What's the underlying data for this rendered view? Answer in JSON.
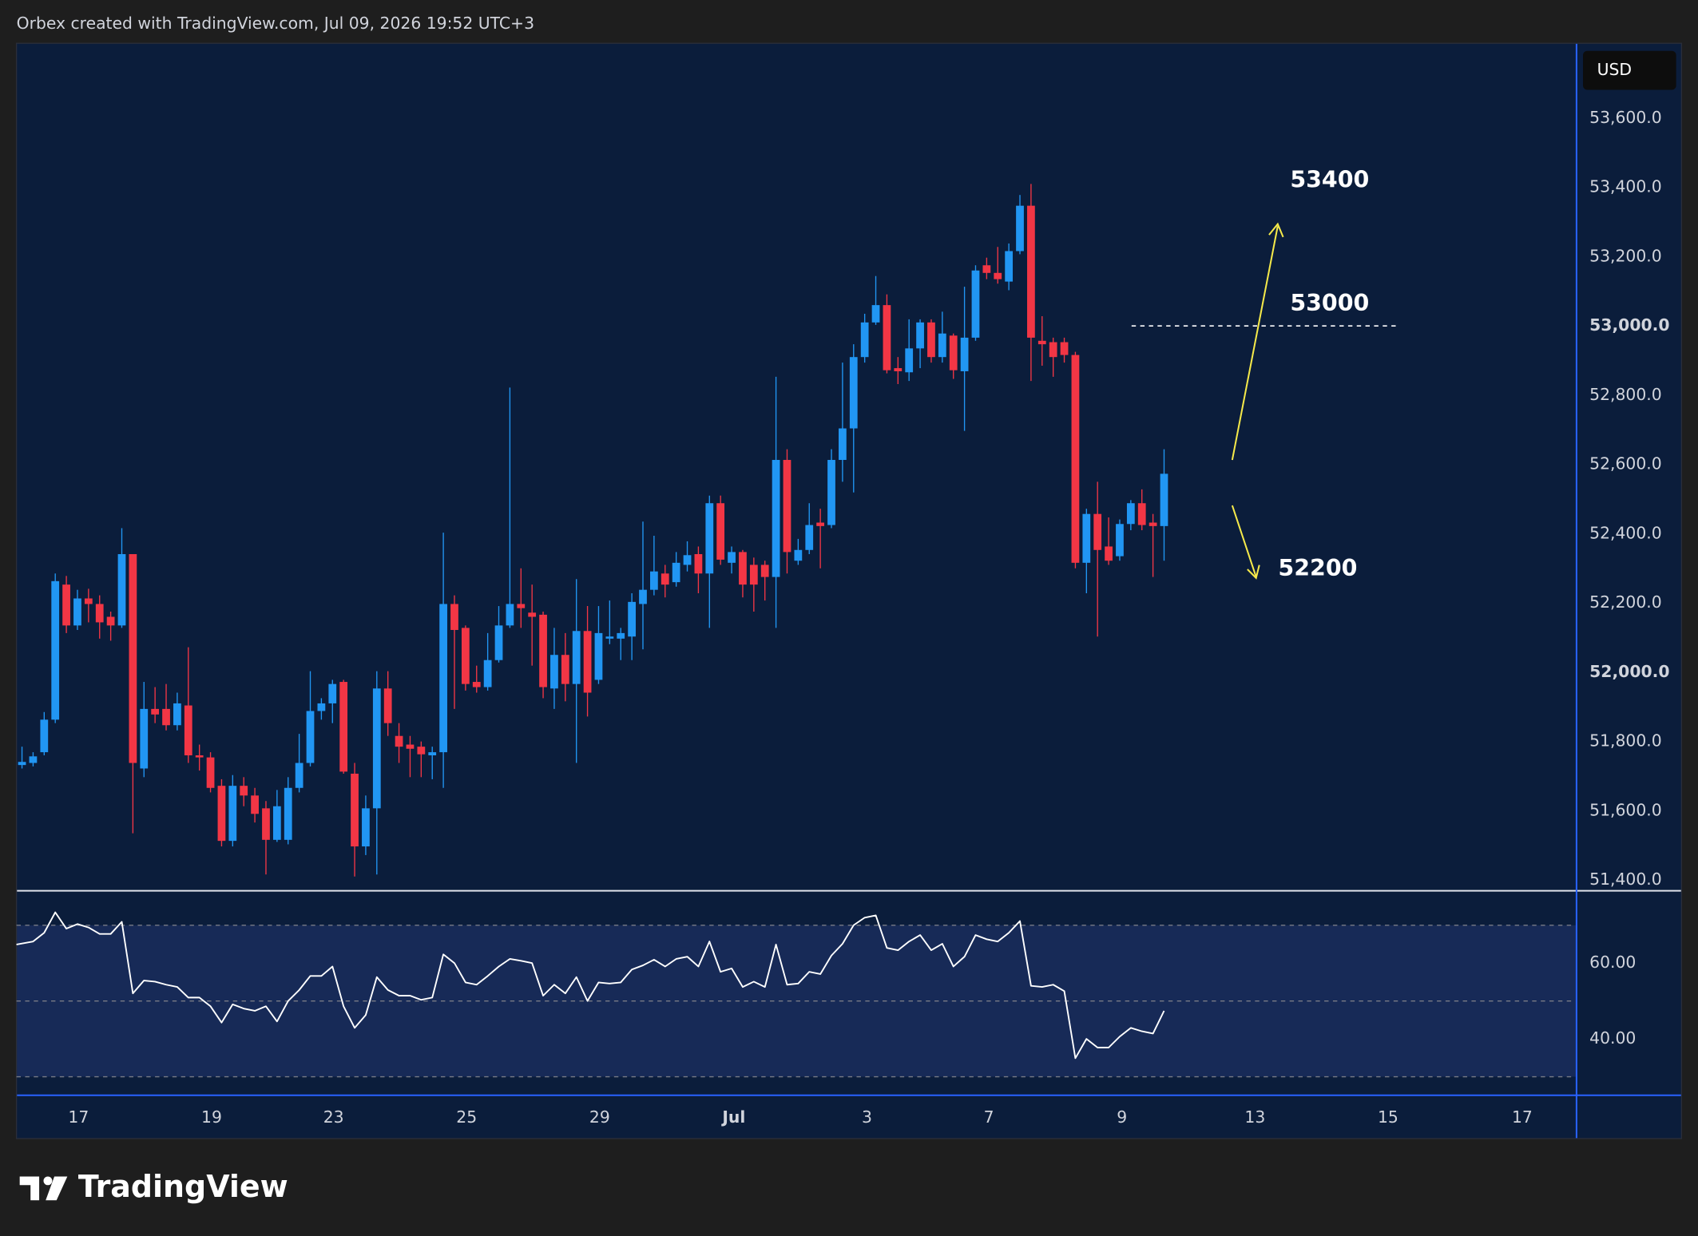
{
  "header": "Orbex created with TradingView.com, Jul 09, 2026 19:52 UTC+3",
  "logo": "TradingView",
  "chart_data": [
    {
      "type": "candlestick",
      "currency": "USD",
      "up_color": "#2196f3",
      "down_color": "#f23645",
      "open": [
        51732,
        51738,
        51769,
        51863,
        52253,
        52135,
        52213,
        52197,
        52160,
        52135,
        52341,
        51722,
        51894,
        51894,
        51847,
        51904,
        51760,
        51754,
        51672,
        51513,
        51672,
        51644,
        51607,
        51516,
        51516,
        51666,
        51738,
        51888,
        51910,
        51972,
        51707,
        51497,
        51607,
        51953,
        51816,
        51791,
        51785,
        51760,
        51769,
        52197,
        52128,
        51972,
        51957,
        52035,
        52135,
        52197,
        52172,
        52166,
        51953,
        52050,
        51966,
        52119,
        51978,
        52097,
        52097,
        52103,
        52197,
        52238,
        52285,
        52260,
        52310,
        52341,
        52285,
        52488,
        52316,
        52347,
        52310,
        52310,
        52275,
        52613,
        52322,
        52353,
        52432,
        52425,
        52613,
        52704,
        52910,
        53010,
        53060,
        52878,
        52866,
        52935,
        53010,
        52910,
        52972,
        52869,
        52966,
        53175,
        53153,
        53128,
        53216,
        53347,
        52957,
        52953,
        52953,
        52916,
        52316,
        52457,
        52363,
        52335,
        52428,
        52488,
        52432,
        52422
      ],
      "high": [
        51785,
        51769,
        51885,
        52285,
        52278,
        52238,
        52241,
        52222,
        52175,
        52416,
        52341,
        51972,
        51957,
        51966,
        51941,
        52072,
        51791,
        51769,
        51691,
        51703,
        51697,
        51666,
        51628,
        51660,
        51697,
        51822,
        52003,
        51925,
        51978,
        51978,
        51738,
        51644,
        52003,
        52003,
        51853,
        51816,
        51800,
        51785,
        52403,
        52222,
        52135,
        52019,
        52113,
        52191,
        52822,
        52300,
        52253,
        52175,
        52128,
        52113,
        52269,
        52191,
        52191,
        52207,
        52128,
        52228,
        52435,
        52394,
        52310,
        52347,
        52378,
        52363,
        52510,
        52510,
        52363,
        52353,
        52331,
        52322,
        52853,
        52644,
        52385,
        52488,
        52472,
        52644,
        52894,
        52947,
        53035,
        53144,
        53091,
        52910,
        53019,
        53019,
        53019,
        53041,
        52978,
        53113,
        53175,
        53197,
        53228,
        53238,
        53378,
        53410,
        53028,
        52966,
        52966,
        52925,
        52472,
        52550,
        52447,
        52441,
        52497,
        52528,
        52457,
        52644
      ],
      "low": [
        51722,
        51728,
        51760,
        51853,
        52113,
        52122,
        52144,
        52097,
        52091,
        52128,
        51535,
        51697,
        51853,
        51832,
        51832,
        51738,
        51716,
        51653,
        51497,
        51497,
        51613,
        51566,
        51416,
        51510,
        51503,
        51653,
        51728,
        51863,
        51853,
        51707,
        51410,
        51472,
        51416,
        51816,
        51738,
        51697,
        51697,
        51691,
        51666,
        51894,
        51947,
        51941,
        51947,
        52028,
        52128,
        52128,
        52019,
        51925,
        51894,
        51916,
        51738,
        51872,
        51966,
        52081,
        52035,
        52035,
        52066,
        52222,
        52216,
        52247,
        52291,
        52228,
        52128,
        52310,
        52285,
        52216,
        52175,
        52207,
        52128,
        52285,
        52310,
        52341,
        52300,
        52416,
        52550,
        52519,
        52894,
        53003,
        52863,
        52832,
        52841,
        52878,
        52894,
        52894,
        52847,
        52697,
        52957,
        53135,
        53122,
        53103,
        53207,
        52841,
        52885,
        52853,
        52894,
        52300,
        52228,
        52103,
        52310,
        52322,
        52410,
        52410,
        52275,
        52322
      ],
      "close": [
        51741,
        51757,
        51863,
        52263,
        52135,
        52213,
        52197,
        52144,
        52135,
        52341,
        51738,
        51894,
        51878,
        51847,
        51910,
        51760,
        51754,
        51666,
        51513,
        51672,
        51644,
        51591,
        51516,
        51613,
        51666,
        51738,
        51888,
        51910,
        51966,
        51713,
        51497,
        51607,
        51953,
        51853,
        51785,
        51779,
        51763,
        51769,
        52197,
        52122,
        51966,
        51957,
        52035,
        52135,
        52197,
        52185,
        52160,
        51957,
        52050,
        51966,
        52119,
        51941,
        52113,
        52103,
        52113,
        52203,
        52238,
        52291,
        52253,
        52316,
        52338,
        52285,
        52488,
        52325,
        52347,
        52253,
        52253,
        52275,
        52613,
        52347,
        52353,
        52425,
        52422,
        52613,
        52704,
        52910,
        53010,
        53060,
        52872,
        52869,
        52935,
        53010,
        52910,
        52978,
        52872,
        52966,
        53160,
        53153,
        53135,
        53216,
        53347,
        52966,
        52947,
        52910,
        52916,
        52316,
        52457,
        52353,
        52322,
        52428,
        52488,
        52425,
        52422,
        52573
      ],
      "xlim": [
        -0.5,
        140.1
      ],
      "xticks": [
        {
          "value": 5.1,
          "label": "17"
        },
        {
          "value": 17.1,
          "label": "19"
        },
        {
          "value": 28.1,
          "label": "23"
        },
        {
          "value": 40.1,
          "label": "25"
        },
        {
          "value": 52.1,
          "label": "29"
        },
        {
          "value": 64.2,
          "label": "Jul"
        },
        {
          "value": 76.2,
          "label": "3"
        },
        {
          "value": 87.2,
          "label": "7"
        },
        {
          "value": 99.2,
          "label": "9"
        },
        {
          "value": 111.2,
          "label": "13"
        },
        {
          "value": 123.2,
          "label": "15"
        },
        {
          "value": 135.3,
          "label": "17"
        }
      ],
      "ylim": [
        51369,
        53816
      ],
      "yticks": [
        {
          "value": 53600,
          "label": "53,600.0"
        },
        {
          "value": 53400,
          "label": "53,400.0"
        },
        {
          "value": 53200,
          "label": "53,200.0"
        },
        {
          "value": 53000,
          "label": "53,000.0"
        },
        {
          "value": 52800,
          "label": "52,800.0"
        },
        {
          "value": 52600,
          "label": "52,600.0"
        },
        {
          "value": 52400,
          "label": "52,400.0"
        },
        {
          "value": 52200,
          "label": "52,200.0"
        },
        {
          "value": 52000,
          "label": "52,000.0"
        },
        {
          "value": 51800,
          "label": "51,800.0"
        },
        {
          "value": 51600,
          "label": "51,600.0"
        },
        {
          "value": 51400,
          "label": "51,400.0"
        }
      ],
      "level": 53000,
      "annotations": [
        "53400",
        "53000",
        "52200"
      ]
    },
    {
      "type": "line",
      "color": "#ffffff",
      "values": [
        64.9,
        65.7,
        68.0,
        73.4,
        69.1,
        70.3,
        69.4,
        67.7,
        67.7,
        70.9,
        52.0,
        55.4,
        55.1,
        54.3,
        53.7,
        50.9,
        50.9,
        48.6,
        44.3,
        49.1,
        48.0,
        47.4,
        48.6,
        44.6,
        50.0,
        52.9,
        56.6,
        56.6,
        59.1,
        48.6,
        42.9,
        46.3,
        56.3,
        52.9,
        51.4,
        51.4,
        50.3,
        50.9,
        62.3,
        60.0,
        54.9,
        54.3,
        56.6,
        59.1,
        61.1,
        60.6,
        60.0,
        51.4,
        54.3,
        52.0,
        56.3,
        50.0,
        54.9,
        54.6,
        54.9,
        58.3,
        59.4,
        60.9,
        59.1,
        61.1,
        61.7,
        59.1,
        65.7,
        57.7,
        58.6,
        53.7,
        55.1,
        53.7,
        64.9,
        54.3,
        54.6,
        57.7,
        57.1,
        62.0,
        65.1,
        70.0,
        72.0,
        72.6,
        64.0,
        63.4,
        65.7,
        67.4,
        63.4,
        65.1,
        59.1,
        61.7,
        67.4,
        66.3,
        65.7,
        68.0,
        71.1,
        54.0,
        53.7,
        54.3,
        52.6,
        34.9,
        40.0,
        37.7,
        37.7,
        40.6,
        42.9,
        42.0,
        41.4,
        47.4
      ],
      "ylim": [
        25.1,
        79.1
      ],
      "yticks": [
        {
          "value": 60,
          "label": "60.00"
        },
        {
          "value": 40,
          "label": "40.00"
        }
      ],
      "levels": [
        70,
        50,
        30
      ]
    }
  ]
}
